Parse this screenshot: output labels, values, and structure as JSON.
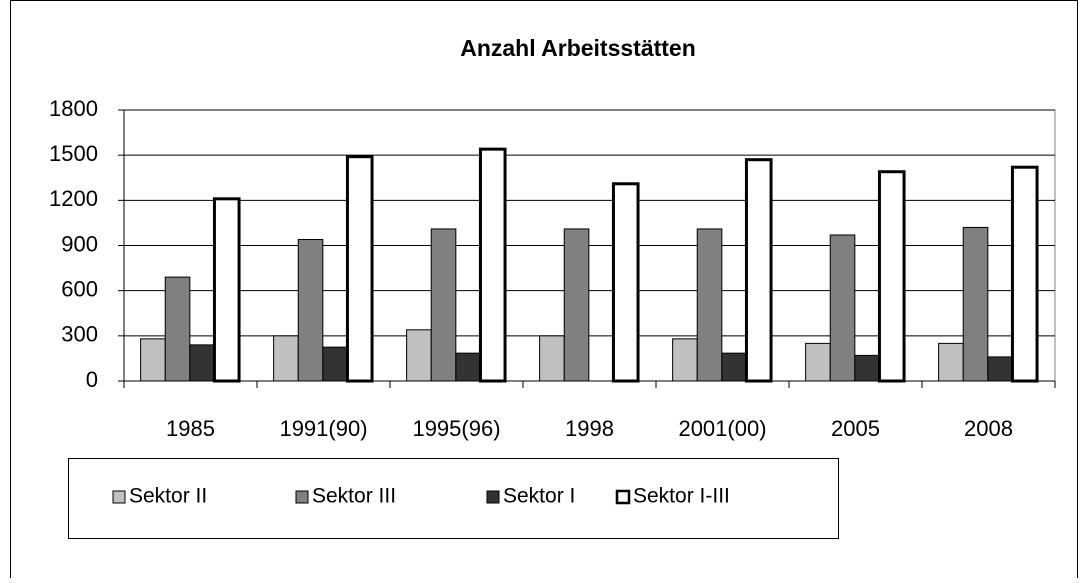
{
  "chart_data": {
    "type": "bar",
    "title": "Anzahl Arbeitsstätten",
    "categories": [
      "1985",
      "1991(90)",
      "1995(96)",
      "1998",
      "2001(00)",
      "2005",
      "2008"
    ],
    "series": [
      {
        "name": "Sektor II",
        "color": "#c0c0c0",
        "values": [
          280,
          300,
          340,
          300,
          280,
          250,
          250
        ]
      },
      {
        "name": "Sektor III",
        "color": "#808080",
        "values": [
          690,
          940,
          1010,
          1010,
          1010,
          970,
          1020
        ]
      },
      {
        "name": "Sektor I",
        "color": "#333333",
        "values": [
          240,
          225,
          185,
          null,
          185,
          170,
          160
        ]
      },
      {
        "name": "Sektor I-III",
        "color": "#ffffff",
        "values": [
          1210,
          1490,
          1540,
          1310,
          1470,
          1390,
          1420
        ]
      }
    ],
    "ylim": [
      0,
      1800
    ],
    "yticks": [
      0,
      300,
      600,
      900,
      1200,
      1500,
      1800
    ],
    "grid": true,
    "legend": "bottom"
  }
}
